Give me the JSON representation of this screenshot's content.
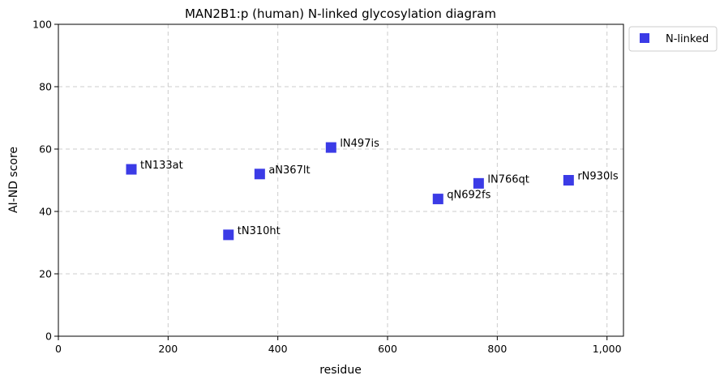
{
  "chart_data": {
    "type": "scatter",
    "title": "MAN2B1:p (human) N-linked glycosylation diagram",
    "xlabel": "residue",
    "ylabel": "AI-ND score",
    "xlim": [
      0,
      1030
    ],
    "ylim": [
      0,
      100
    ],
    "xticks": [
      0,
      200,
      400,
      600,
      800,
      1000
    ],
    "xtick_labels": [
      "0",
      "200",
      "400",
      "600",
      "800",
      "1,000"
    ],
    "yticks": [
      0,
      20,
      40,
      60,
      80,
      100
    ],
    "ytick_labels": [
      "0",
      "20",
      "40",
      "60",
      "80",
      "100"
    ],
    "grid": true,
    "legend_position": "outside-top-right",
    "series": [
      {
        "name": "N-linked",
        "color": "#3b3be6",
        "marker": "square",
        "points": [
          {
            "x": 133,
            "y": 53.5,
            "label": "tN133at"
          },
          {
            "x": 310,
            "y": 32.5,
            "label": "tN310ht"
          },
          {
            "x": 367,
            "y": 52.0,
            "label": "aN367lt"
          },
          {
            "x": 497,
            "y": 60.5,
            "label": "lN497is"
          },
          {
            "x": 692,
            "y": 44.0,
            "label": "qN692fs"
          },
          {
            "x": 766,
            "y": 49.0,
            "label": "lN766qt"
          },
          {
            "x": 930,
            "y": 50.0,
            "label": "rN930ls"
          }
        ]
      }
    ]
  }
}
